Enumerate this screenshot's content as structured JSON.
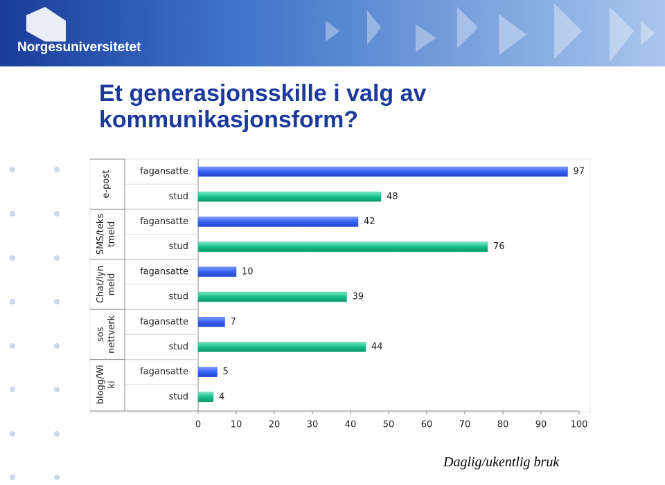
{
  "header": {
    "logo": "Norgesuniversitetet"
  },
  "chart_data": {
    "type": "bar",
    "orientation": "horizontal",
    "title": "Et generasjonsskille i valg av kommunikasjonsform?",
    "groups": [
      {
        "label": [
          "e-post"
        ],
        "categories": [
          "fagansatte",
          "stud"
        ],
        "values": [
          97,
          48
        ]
      },
      {
        "label": [
          "SMS/teks",
          "tmeld"
        ],
        "categories": [
          "fagansatte",
          "stud"
        ],
        "values": [
          42,
          76
        ]
      },
      {
        "label": [
          "Chat/lyn",
          "meld"
        ],
        "categories": [
          "fagansatte",
          "stud"
        ],
        "values": [
          10,
          39
        ]
      },
      {
        "label": [
          "sos",
          "nettverk"
        ],
        "categories": [
          "fagansatte",
          "stud"
        ],
        "values": [
          7,
          44
        ]
      },
      {
        "label": [
          "blogg/Wi",
          "ki"
        ],
        "categories": [
          "fagansatte",
          "stud"
        ],
        "values": [
          5,
          4
        ]
      }
    ],
    "colors": [
      "#3560f2",
      "#17c08c"
    ],
    "xlim": [
      0,
      100
    ],
    "xticks": [
      0,
      10,
      20,
      30,
      40,
      50,
      60,
      70,
      80,
      90,
      100
    ],
    "note": "Daglig/ukentlig bruk"
  }
}
